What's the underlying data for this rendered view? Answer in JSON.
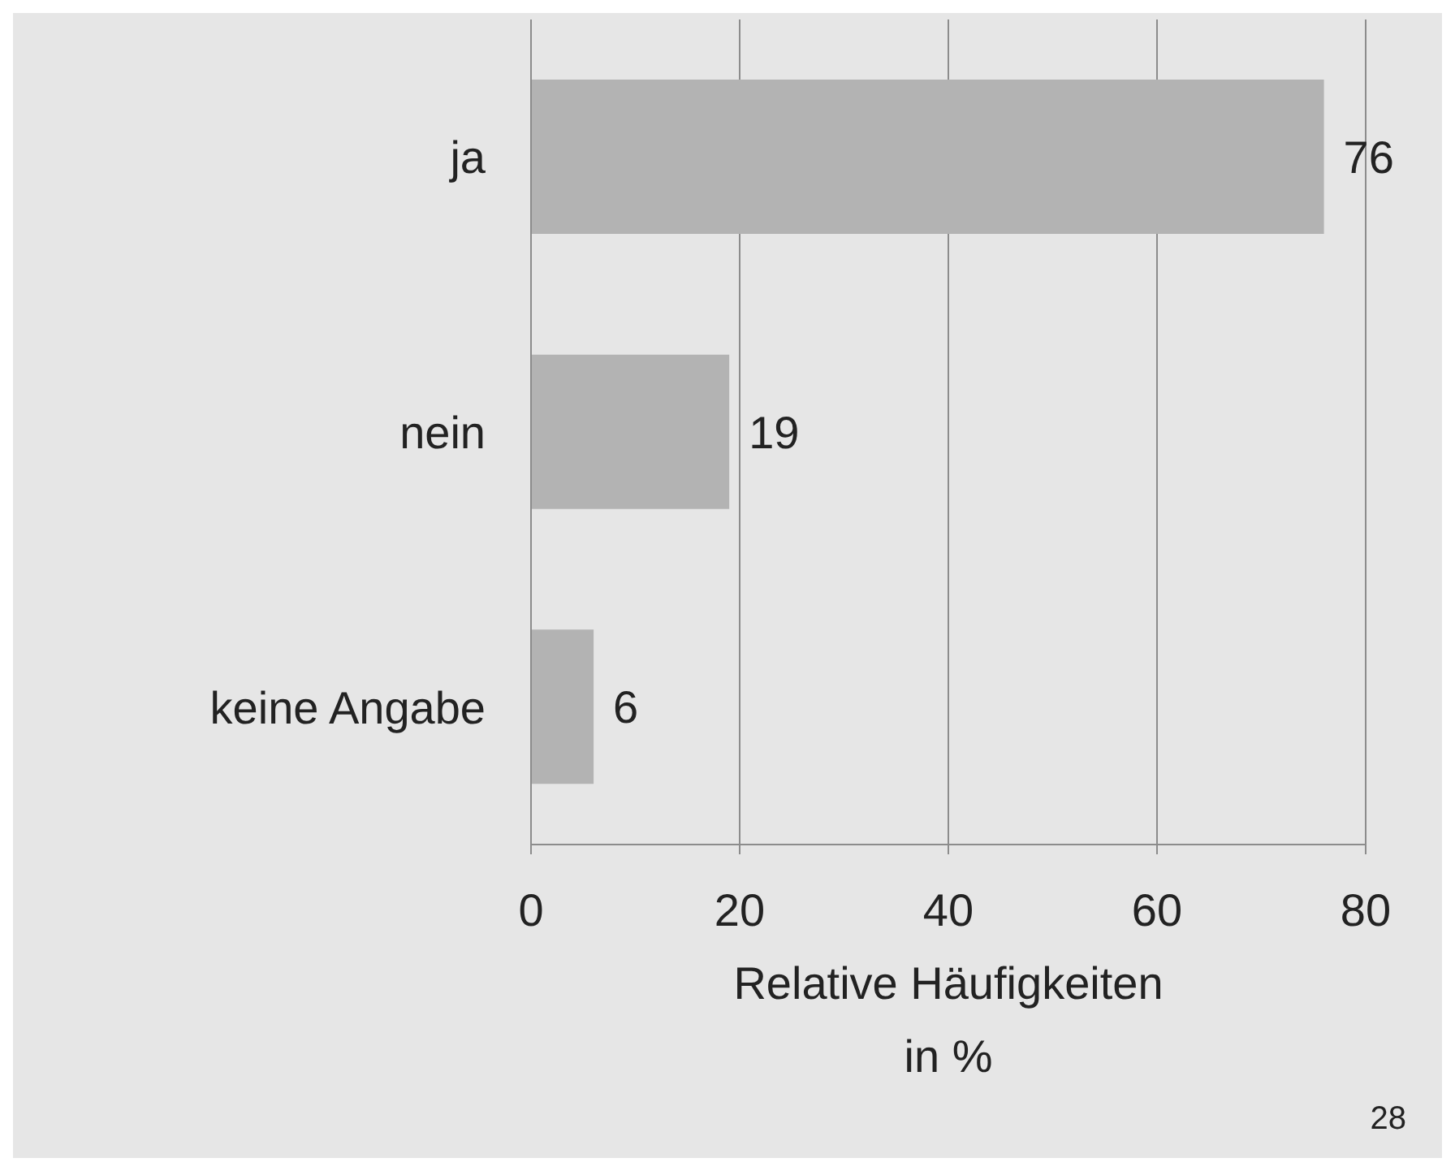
{
  "chart_data": {
    "type": "bar",
    "orientation": "horizontal",
    "categories": [
      "ja",
      "nein",
      "keine Angabe"
    ],
    "values": [
      76,
      19,
      6
    ],
    "color": "#b3b3b3",
    "xlim": [
      0,
      80
    ],
    "xticks": [
      0,
      20,
      40,
      60,
      80
    ],
    "xlabel": "Relative Häufigkeiten in %",
    "grid": "x",
    "data_labels": true,
    "annotations": [
      "28"
    ]
  }
}
